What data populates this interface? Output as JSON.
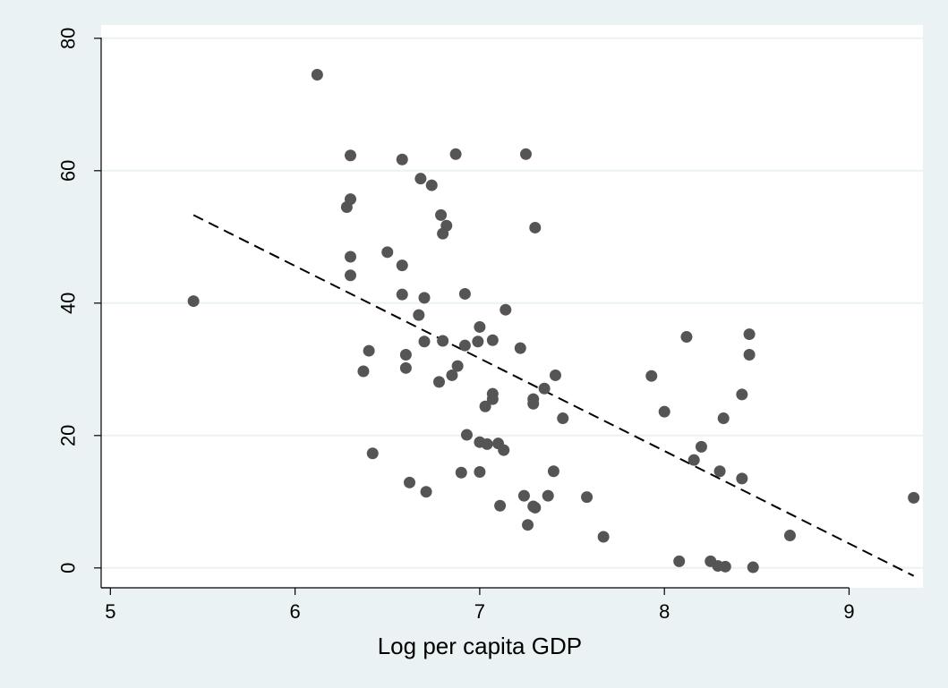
{
  "chart_data": {
    "type": "scatter",
    "title": "",
    "xlabel": "Log per capita GDP",
    "ylabel": "",
    "xlim": [
      4.95,
      9.4
    ],
    "ylim": [
      -3,
      82
    ],
    "xticks": [
      5,
      6,
      7,
      8,
      9
    ],
    "yticks": [
      0,
      20,
      40,
      60,
      80
    ],
    "grid": "horizontal",
    "legend": "none",
    "colors": {
      "background": "#eaf2f3",
      "plot_background": "#ffffff",
      "gridline": "#eaf2f3",
      "marker": "#555555",
      "fit_line": "#000000"
    },
    "series": [
      {
        "points": [
          [
            5.45,
            40.3
          ],
          [
            6.12,
            74.5
          ],
          [
            6.3,
            62.3
          ],
          [
            6.28,
            54.5
          ],
          [
            6.3,
            55.7
          ],
          [
            6.3,
            47.0
          ],
          [
            6.3,
            44.2
          ],
          [
            6.4,
            32.8
          ],
          [
            6.37,
            29.7
          ],
          [
            6.42,
            17.3
          ],
          [
            6.5,
            47.7
          ],
          [
            6.58,
            61.7
          ],
          [
            6.58,
            45.7
          ],
          [
            6.58,
            41.3
          ],
          [
            6.6,
            32.2
          ],
          [
            6.6,
            30.2
          ],
          [
            6.62,
            12.9
          ],
          [
            6.67,
            38.2
          ],
          [
            6.68,
            58.8
          ],
          [
            6.7,
            40.8
          ],
          [
            6.7,
            34.2
          ],
          [
            6.71,
            11.5
          ],
          [
            6.74,
            57.8
          ],
          [
            6.78,
            28.1
          ],
          [
            6.79,
            53.3
          ],
          [
            6.8,
            50.5
          ],
          [
            6.8,
            34.3
          ],
          [
            6.82,
            51.7
          ],
          [
            6.85,
            29.1
          ],
          [
            6.87,
            62.5
          ],
          [
            6.88,
            30.5
          ],
          [
            6.9,
            14.4
          ],
          [
            6.92,
            41.4
          ],
          [
            6.92,
            33.6
          ],
          [
            6.93,
            20.1
          ],
          [
            6.99,
            34.2
          ],
          [
            7.0,
            36.4
          ],
          [
            7.0,
            19.0
          ],
          [
            7.0,
            14.5
          ],
          [
            7.03,
            24.4
          ],
          [
            7.04,
            18.7
          ],
          [
            7.07,
            34.4
          ],
          [
            7.07,
            26.3
          ],
          [
            7.07,
            25.5
          ],
          [
            7.1,
            18.8
          ],
          [
            7.11,
            9.4
          ],
          [
            7.13,
            17.8
          ],
          [
            7.14,
            39.0
          ],
          [
            7.22,
            33.2
          ],
          [
            7.25,
            62.5
          ],
          [
            7.24,
            10.9
          ],
          [
            7.26,
            6.5
          ],
          [
            7.29,
            9.3
          ],
          [
            7.29,
            25.5
          ],
          [
            7.29,
            24.8
          ],
          [
            7.3,
            51.4
          ],
          [
            7.3,
            9.1
          ],
          [
            7.35,
            27.1
          ],
          [
            7.37,
            10.9
          ],
          [
            7.4,
            14.6
          ],
          [
            7.41,
            29.1
          ],
          [
            7.45,
            22.6
          ],
          [
            7.58,
            10.7
          ],
          [
            7.67,
            4.7
          ],
          [
            7.93,
            29.0
          ],
          [
            8.0,
            23.6
          ],
          [
            8.08,
            1.0
          ],
          [
            8.12,
            34.9
          ],
          [
            8.16,
            16.3
          ],
          [
            8.2,
            18.3
          ],
          [
            8.25,
            1.0
          ],
          [
            8.29,
            0.3
          ],
          [
            8.3,
            14.6
          ],
          [
            8.32,
            22.6
          ],
          [
            8.33,
            0.2
          ],
          [
            8.42,
            26.2
          ],
          [
            8.42,
            13.5
          ],
          [
            8.46,
            35.3
          ],
          [
            8.46,
            32.2
          ],
          [
            8.48,
            0.1
          ],
          [
            8.68,
            4.9
          ],
          [
            9.35,
            10.6
          ]
        ]
      }
    ],
    "fit_line": {
      "style": "dashed",
      "x": [
        5.45,
        9.35
      ],
      "y": [
        53.3,
        -1.2
      ]
    }
  }
}
